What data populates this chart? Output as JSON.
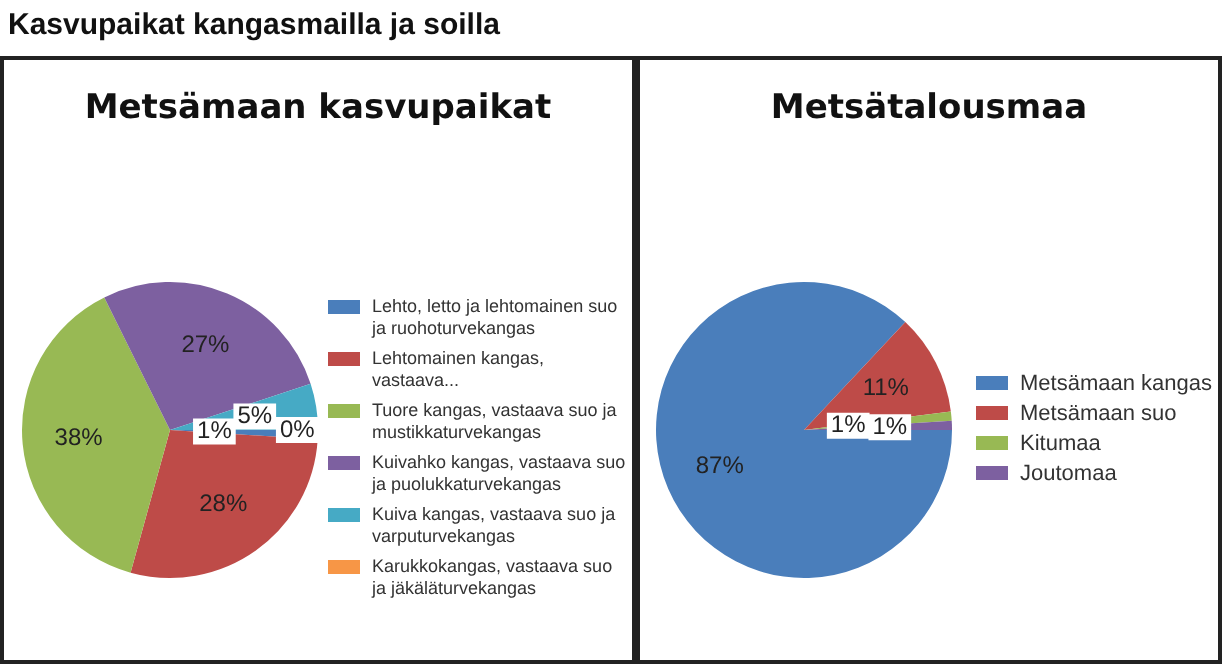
{
  "chart_data": [
    {
      "type": "pie",
      "title": "Metsämaan kasvupaikat",
      "annotations": [
        "Kasvupaikat kangasmailla ja soilla"
      ],
      "categories": [
        "Lehto, letto ja lehtomainen suo ja ruohoturvekangas",
        "Lehtomainen kangas, vastaava...",
        "Tuore kangas, vastaava suo ja mustikkaturvekangas",
        "Kuivahko kangas, vastaava suo ja puolukkaturvekangas",
        "Kuiva kangas, vastaava suo ja varputurvekangas",
        "Karukkokangas, vastaava suo ja jäkäläturvekangas"
      ],
      "values": [
        1,
        28,
        38,
        27,
        5,
        0
      ],
      "colors": [
        "#4a7ebb",
        "#be4b48",
        "#98b954",
        "#7d60a0",
        "#46aac5",
        "#f79646"
      ],
      "value_labels": [
        "1%",
        "28%",
        "38%",
        "27%",
        "5%",
        "0%"
      ],
      "legend": "right"
    },
    {
      "type": "pie",
      "title": "Metsätalousmaa",
      "categories": [
        "Metsämaan kangas",
        "Metsämaan suo",
        "Kitumaa",
        "Joutomaa"
      ],
      "values": [
        87,
        11,
        1,
        1
      ],
      "colors": [
        "#4a7ebb",
        "#be4b48",
        "#98b954",
        "#7d60a0"
      ],
      "value_labels": [
        "87%",
        "11%",
        "1%",
        "1%"
      ],
      "legend": "right"
    }
  ]
}
